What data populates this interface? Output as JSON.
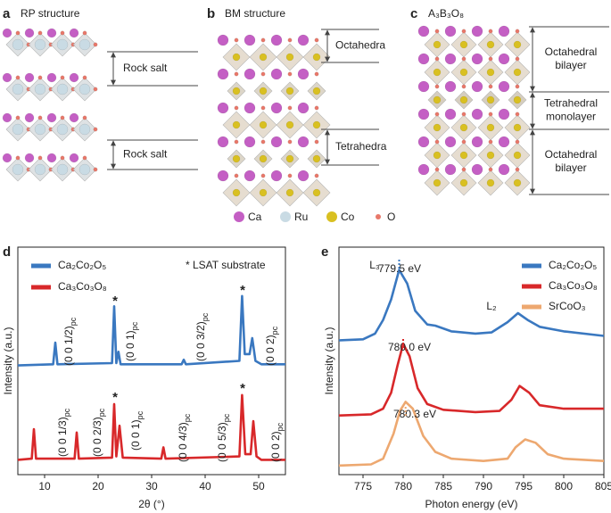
{
  "panels": [
    {
      "letter": "a",
      "title": "RP structure",
      "labels": [
        [
          "Rock salt"
        ],
        [
          "Rock salt"
        ]
      ]
    },
    {
      "letter": "b",
      "title": "BM structure",
      "labels": [
        [
          "Octahedra"
        ],
        [
          "Tetrahedra"
        ]
      ]
    },
    {
      "letter": "c",
      "title": "A₃B₃O₈",
      "labels": [
        [
          "Octahedral",
          "bilayer"
        ],
        [
          "Tetrahedral",
          "monolayer"
        ],
        [
          "Octahedral",
          "bilayer"
        ]
      ]
    }
  ],
  "atom_legend": [
    {
      "name": "Ca",
      "color": "#c45fc4"
    },
    {
      "name": "Ru",
      "color": "#c9dbe4"
    },
    {
      "name": "Co",
      "color": "#d9c021"
    },
    {
      "name": "O",
      "color": "#e8786a"
    }
  ],
  "chart_data": [
    {
      "type": "line",
      "letter": "d",
      "xlabel": "2θ (°)",
      "ylabel": "Intensity (a.u.)",
      "xlim": [
        5,
        55
      ],
      "xticks": [
        10,
        20,
        30,
        40,
        50
      ],
      "ylim": [
        0,
        10
      ],
      "note": "* LSAT substrate",
      "series": [
        {
          "name": "Ca₂Co₂O₅",
          "color": "#3a78c0",
          "x": [
            5,
            11.6,
            12,
            12.4,
            22.6,
            23,
            23.4,
            23.8,
            24.2,
            35.6,
            36,
            36.4,
            46.4,
            46.9,
            47.4,
            48.3,
            48.8,
            49.4,
            50.5,
            55
          ],
          "values": [
            4.8,
            4.85,
            5.8,
            4.85,
            4.9,
            7.4,
            4.9,
            5.4,
            4.85,
            4.85,
            5.05,
            4.85,
            5.0,
            7.85,
            5.3,
            5.3,
            6.0,
            5.0,
            4.85,
            4.85
          ]
        },
        {
          "name": "Ca₃Co₃O₈",
          "color": "#d8282a",
          "x": [
            5,
            7.6,
            8,
            8.4,
            15.6,
            16,
            16.4,
            22.6,
            23,
            23.4,
            24,
            24.6,
            31.8,
            32.2,
            32.6,
            46.4,
            46.9,
            47.5,
            48.5,
            49,
            49.6,
            50.5,
            55
          ],
          "values": [
            0.65,
            0.7,
            2.0,
            0.7,
            0.7,
            1.85,
            0.7,
            0.75,
            3.1,
            0.8,
            2.15,
            0.75,
            0.7,
            1.2,
            0.7,
            0.8,
            3.5,
            0.9,
            0.9,
            2.35,
            0.8,
            0.65,
            0.65
          ]
        }
      ],
      "annotations": [
        {
          "text": "(0 0 1/2)",
          "sub": "pc"
        },
        {
          "text": "(0 0 1)",
          "sub": "pc"
        },
        {
          "text": "(0 0 3/2)",
          "sub": "pc"
        },
        {
          "text": "(0 0 2)",
          "sub": "pc"
        },
        {
          "text": "(0 0 1/3)",
          "sub": "pc"
        },
        {
          "text": "(0 0 2/3)",
          "sub": "pc"
        },
        {
          "text": "(0 0 1)",
          "sub": "pc"
        },
        {
          "text": "(0 0 4/3)",
          "sub": "pc"
        },
        {
          "text": "(0 0 5/3)",
          "sub": "pc"
        },
        {
          "text": "(0 0 2)",
          "sub": "pc"
        },
        {
          "text": "*"
        },
        {
          "text": "*"
        },
        {
          "text": "*"
        },
        {
          "text": "*"
        }
      ]
    },
    {
      "type": "line",
      "letter": "e",
      "xlabel": "Photon energy (eV)",
      "ylabel": "Intensity (a.u.)",
      "xlim": [
        772,
        805
      ],
      "xticks": [
        775,
        780,
        785,
        790,
        795,
        800,
        805
      ],
      "ylim": [
        0,
        10
      ],
      "series": [
        {
          "name": "Ca₂Co₂O₅",
          "color": "#3a78c0",
          "x": [
            772,
            775,
            776.5,
            777.5,
            778.5,
            779.5,
            780.5,
            781.5,
            783,
            784,
            786,
            789,
            791,
            793,
            794.3,
            795.5,
            797,
            800,
            805
          ],
          "values": [
            5.9,
            5.95,
            6.2,
            6.8,
            7.7,
            9.0,
            8.4,
            7.2,
            6.6,
            6.55,
            6.3,
            6.2,
            6.25,
            6.7,
            7.1,
            6.8,
            6.5,
            6.3,
            6.1
          ]
        },
        {
          "name": "Ca₃Co₃O₈",
          "color": "#d8282a",
          "x": [
            772,
            776,
            777.5,
            778.5,
            779.3,
            780,
            780.8,
            781.8,
            783,
            785,
            789,
            792,
            793.5,
            794.5,
            795.7,
            797,
            800,
            805
          ],
          "values": [
            2.6,
            2.65,
            2.9,
            3.6,
            4.8,
            5.75,
            5.2,
            3.8,
            3.1,
            2.85,
            2.75,
            2.8,
            3.3,
            3.9,
            3.6,
            3.05,
            2.9,
            2.9
          ]
        },
        {
          "name": "SrCoO₃",
          "color": "#eda870",
          "x": [
            772,
            776,
            777.5,
            778.8,
            779.6,
            780.3,
            781.2,
            782.5,
            784,
            786,
            790,
            793,
            794,
            795.2,
            796.5,
            798,
            800,
            805
          ],
          "values": [
            0.4,
            0.45,
            0.7,
            1.8,
            2.8,
            3.2,
            2.9,
            1.7,
            1.0,
            0.7,
            0.6,
            0.7,
            1.2,
            1.55,
            1.4,
            0.9,
            0.7,
            0.6
          ]
        }
      ],
      "annotations": [
        {
          "text": "L₃"
        },
        {
          "text": "L₂"
        },
        {
          "text": "779.5 eV"
        },
        {
          "text": "780.0 eV"
        },
        {
          "text": "780.3 eV"
        }
      ]
    }
  ]
}
